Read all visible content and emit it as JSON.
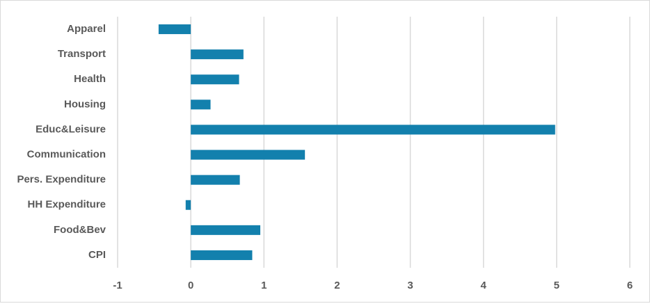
{
  "chart_data": {
    "type": "hbar",
    "categories": [
      "Apparel",
      "Transport",
      "Health",
      "Housing",
      "Educ&Leisure",
      "Communication",
      "Pers. Expenditure",
      "HH Expenditure",
      "Food&Bev",
      "CPI"
    ],
    "values": [
      -0.44,
      0.72,
      0.66,
      0.27,
      4.98,
      1.56,
      0.67,
      -0.07,
      0.95,
      0.84
    ],
    "color": "#1380ad",
    "xlim": [
      -1,
      6
    ],
    "xticks": [
      -1,
      0,
      1,
      2,
      3,
      4,
      5,
      6
    ],
    "grid": true
  }
}
